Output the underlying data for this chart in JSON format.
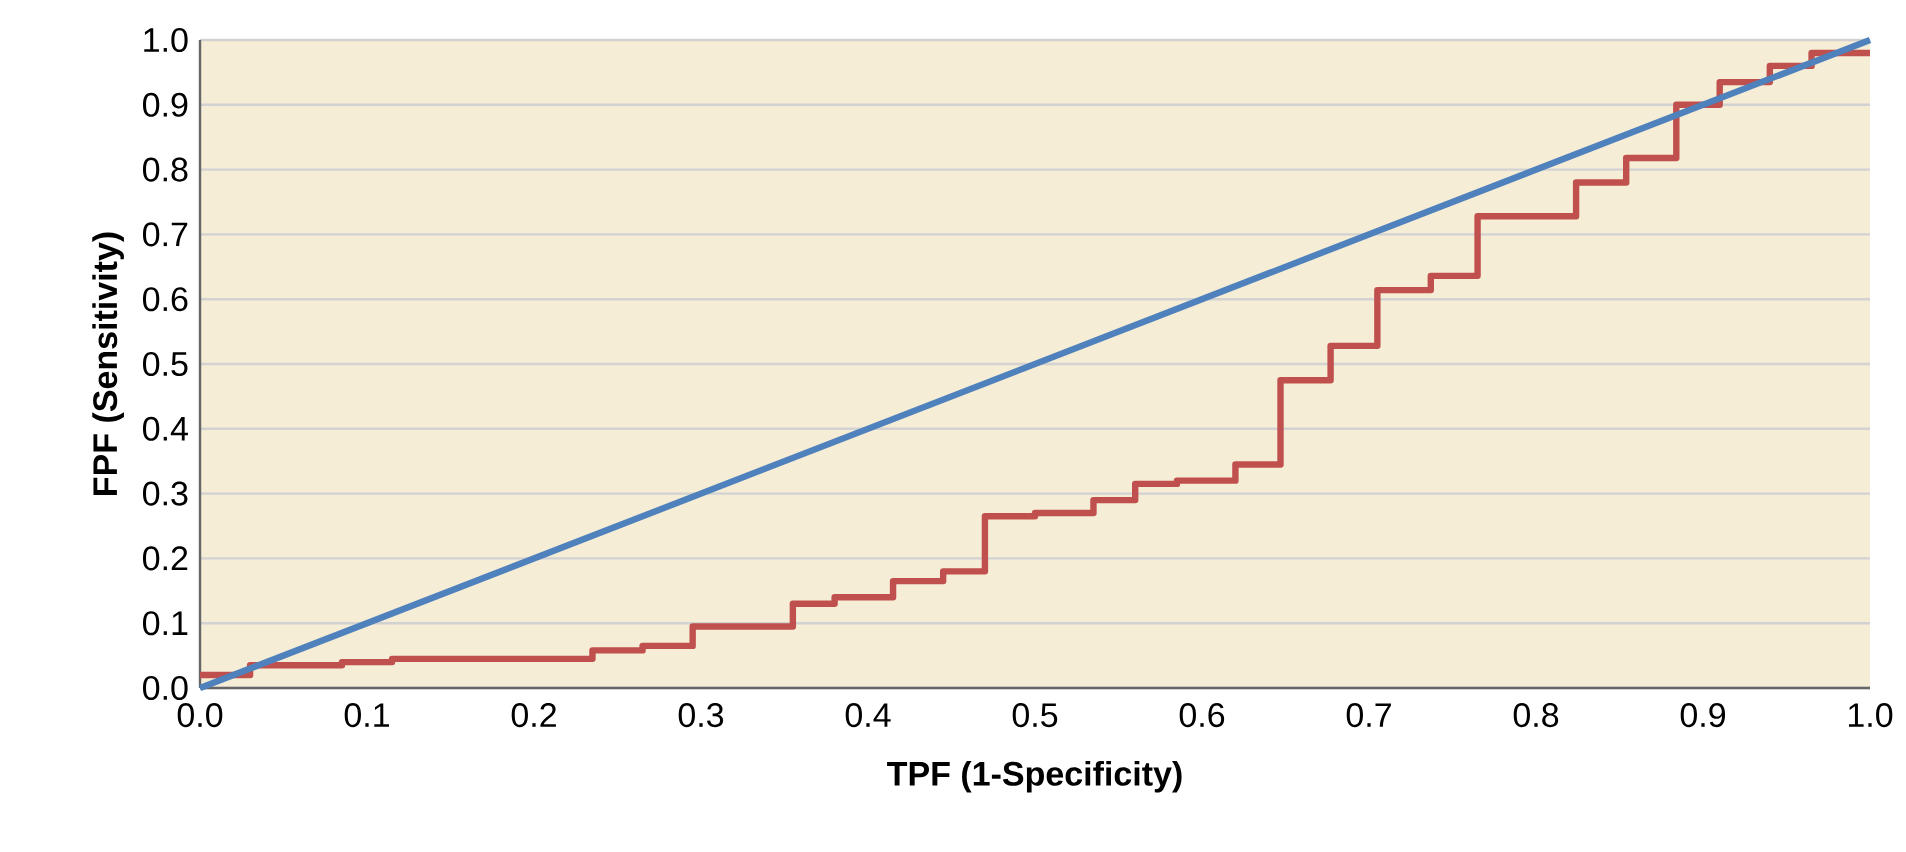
{
  "chart_data": {
    "type": "step",
    "xlabel": "TPF (1-Specificity)",
    "ylabel": "FPF (Sensitivity)",
    "xlim": [
      0,
      1
    ],
    "ylim": [
      0,
      1
    ],
    "xticks": [
      {
        "value": 0,
        "label": "0.0"
      },
      {
        "value": 0.1,
        "label": "0.1"
      },
      {
        "value": 0.2,
        "label": "0.2"
      },
      {
        "value": 0.3,
        "label": "0.3"
      },
      {
        "value": 0.4,
        "label": "0.4"
      },
      {
        "value": 0.5,
        "label": "0.5"
      },
      {
        "value": 0.6,
        "label": "0.6"
      },
      {
        "value": 0.7,
        "label": "0.7"
      },
      {
        "value": 0.8,
        "label": "0.8"
      },
      {
        "value": 0.9,
        "label": "0.9"
      },
      {
        "value": 1,
        "label": "1.0"
      }
    ],
    "yticks": [
      {
        "value": 0,
        "label": "0.0"
      },
      {
        "value": 0.1,
        "label": "0.1"
      },
      {
        "value": 0.2,
        "label": "0.2"
      },
      {
        "value": 0.3,
        "label": "0.3"
      },
      {
        "value": 0.4,
        "label": "0.4"
      },
      {
        "value": 0.5,
        "label": "0.5"
      },
      {
        "value": 0.6,
        "label": "0.6"
      },
      {
        "value": 0.7,
        "label": "0.7"
      },
      {
        "value": 0.8,
        "label": "0.8"
      },
      {
        "value": 0.9,
        "label": "0.9"
      },
      {
        "value": 1,
        "label": "1.0"
      }
    ],
    "grid": "y",
    "series": [
      {
        "color": "#c0504d",
        "x": [
          0,
          0.03,
          0.085,
          0.115,
          0.235,
          0.265,
          0.295,
          0.355,
          0.38,
          0.415,
          0.445,
          0.47,
          0.5,
          0.535,
          0.56,
          0.585,
          0.62,
          0.647,
          0.677,
          0.705,
          0.737,
          0.765,
          0.824,
          0.854,
          0.884,
          0.91,
          0.94,
          0.965,
          1.0
        ],
        "values": [
          0.02,
          0.035,
          0.04,
          0.045,
          0.058,
          0.065,
          0.095,
          0.13,
          0.14,
          0.165,
          0.18,
          0.265,
          0.27,
          0.29,
          0.315,
          0.32,
          0.345,
          0.475,
          0.528,
          0.614,
          0.636,
          0.728,
          0.78,
          0.818,
          0.9,
          0.935,
          0.96,
          0.98,
          0.98
        ]
      },
      {
        "type": "line",
        "color": "#4f81bd",
        "x": [
          0,
          1
        ],
        "values": [
          0,
          1
        ]
      }
    ]
  }
}
